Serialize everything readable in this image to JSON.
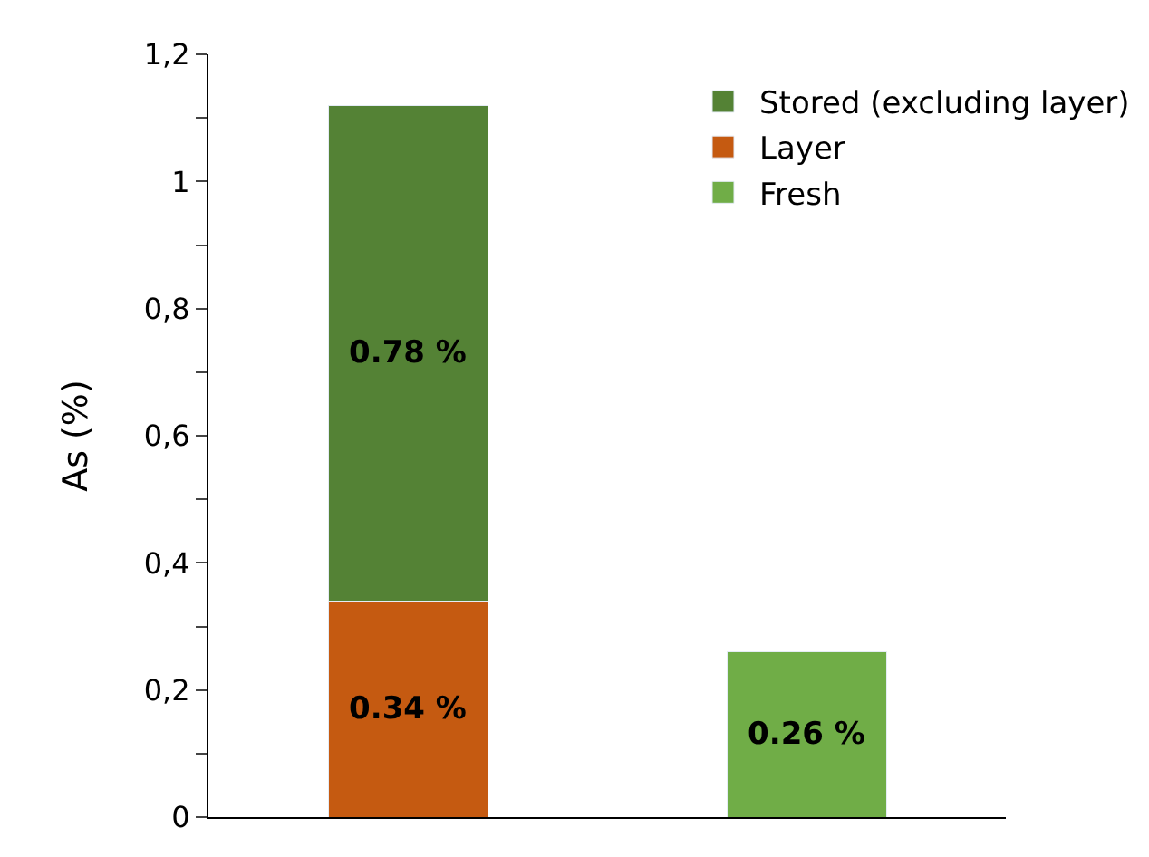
{
  "chart_data": {
    "type": "bar",
    "stacked": true,
    "ylabel": "As (%)",
    "categories": [
      null,
      null
    ],
    "series": [
      {
        "name": "Layer",
        "color": "#c55a11",
        "values": [
          0.34,
          null
        ],
        "value_labels": [
          "0.34 %",
          null
        ]
      },
      {
        "name": "Stored (excluding layer)",
        "color": "#548235",
        "values": [
          0.78,
          null
        ],
        "value_labels": [
          "0.78 %",
          null
        ]
      },
      {
        "name": "Fresh",
        "color": "#70ad47",
        "values": [
          null,
          0.26
        ],
        "value_labels": [
          null,
          "0.26 %"
        ]
      }
    ],
    "ylim": [
      0,
      1.2
    ],
    "yticks": [
      0,
      {
        "value": 0.1,
        "label": null
      },
      {
        "value": 0.2,
        "label": "0,2"
      },
      {
        "value": 0.3,
        "label": null
      },
      {
        "value": 0.4,
        "label": "0,4"
      },
      {
        "value": 0.5,
        "label": null
      },
      {
        "value": 0.6,
        "label": "0,6"
      },
      {
        "value": 0.7,
        "label": null
      },
      {
        "value": 0.8,
        "label": "0,8"
      },
      {
        "value": 0.9,
        "label": null
      },
      1,
      {
        "value": 1.1,
        "label": null
      },
      {
        "value": 1.2,
        "label": "1,2"
      }
    ],
    "legend": "top right"
  }
}
